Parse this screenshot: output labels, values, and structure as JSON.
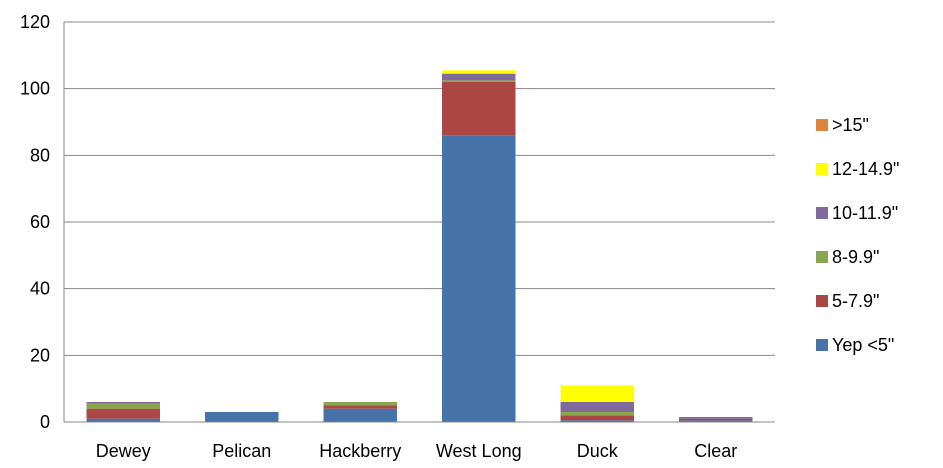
{
  "chart_data": {
    "type": "bar",
    "stacked": true,
    "categories": [
      "Dewey",
      "Pelican",
      "Hackberry",
      "West Long",
      "Duck",
      "Clear"
    ],
    "series": [
      {
        "name": "Yep <5\"",
        "color": "#4572A7",
        "values": [
          1,
          3,
          4,
          86,
          0.5,
          0.5
        ]
      },
      {
        "name": "5-7.9\"",
        "color": "#AA4643",
        "values": [
          3,
          0,
          1,
          16,
          1.5,
          0.5
        ]
      },
      {
        "name": "8-9.9\"",
        "color": "#89A54E",
        "values": [
          1.5,
          0,
          1,
          0.5,
          1,
          0
        ]
      },
      {
        "name": "10-11.9\"",
        "color": "#80699B",
        "values": [
          0.5,
          0,
          0,
          2,
          3,
          0.5
        ]
      },
      {
        "name": "12-14.9\"",
        "color": "#FFFF00",
        "values": [
          0,
          0,
          0,
          1,
          5,
          0
        ]
      },
      {
        "name": ">15\"",
        "color": "#DB843D",
        "values": [
          0,
          0,
          0,
          0,
          0,
          0
        ]
      }
    ],
    "ylim": [
      0,
      120
    ],
    "yticks": [
      "0",
      "20",
      "40",
      "60",
      "80",
      "100",
      "120"
    ],
    "grid": true,
    "legend": "right",
    "title": "",
    "xlabel": "",
    "ylabel": ""
  }
}
